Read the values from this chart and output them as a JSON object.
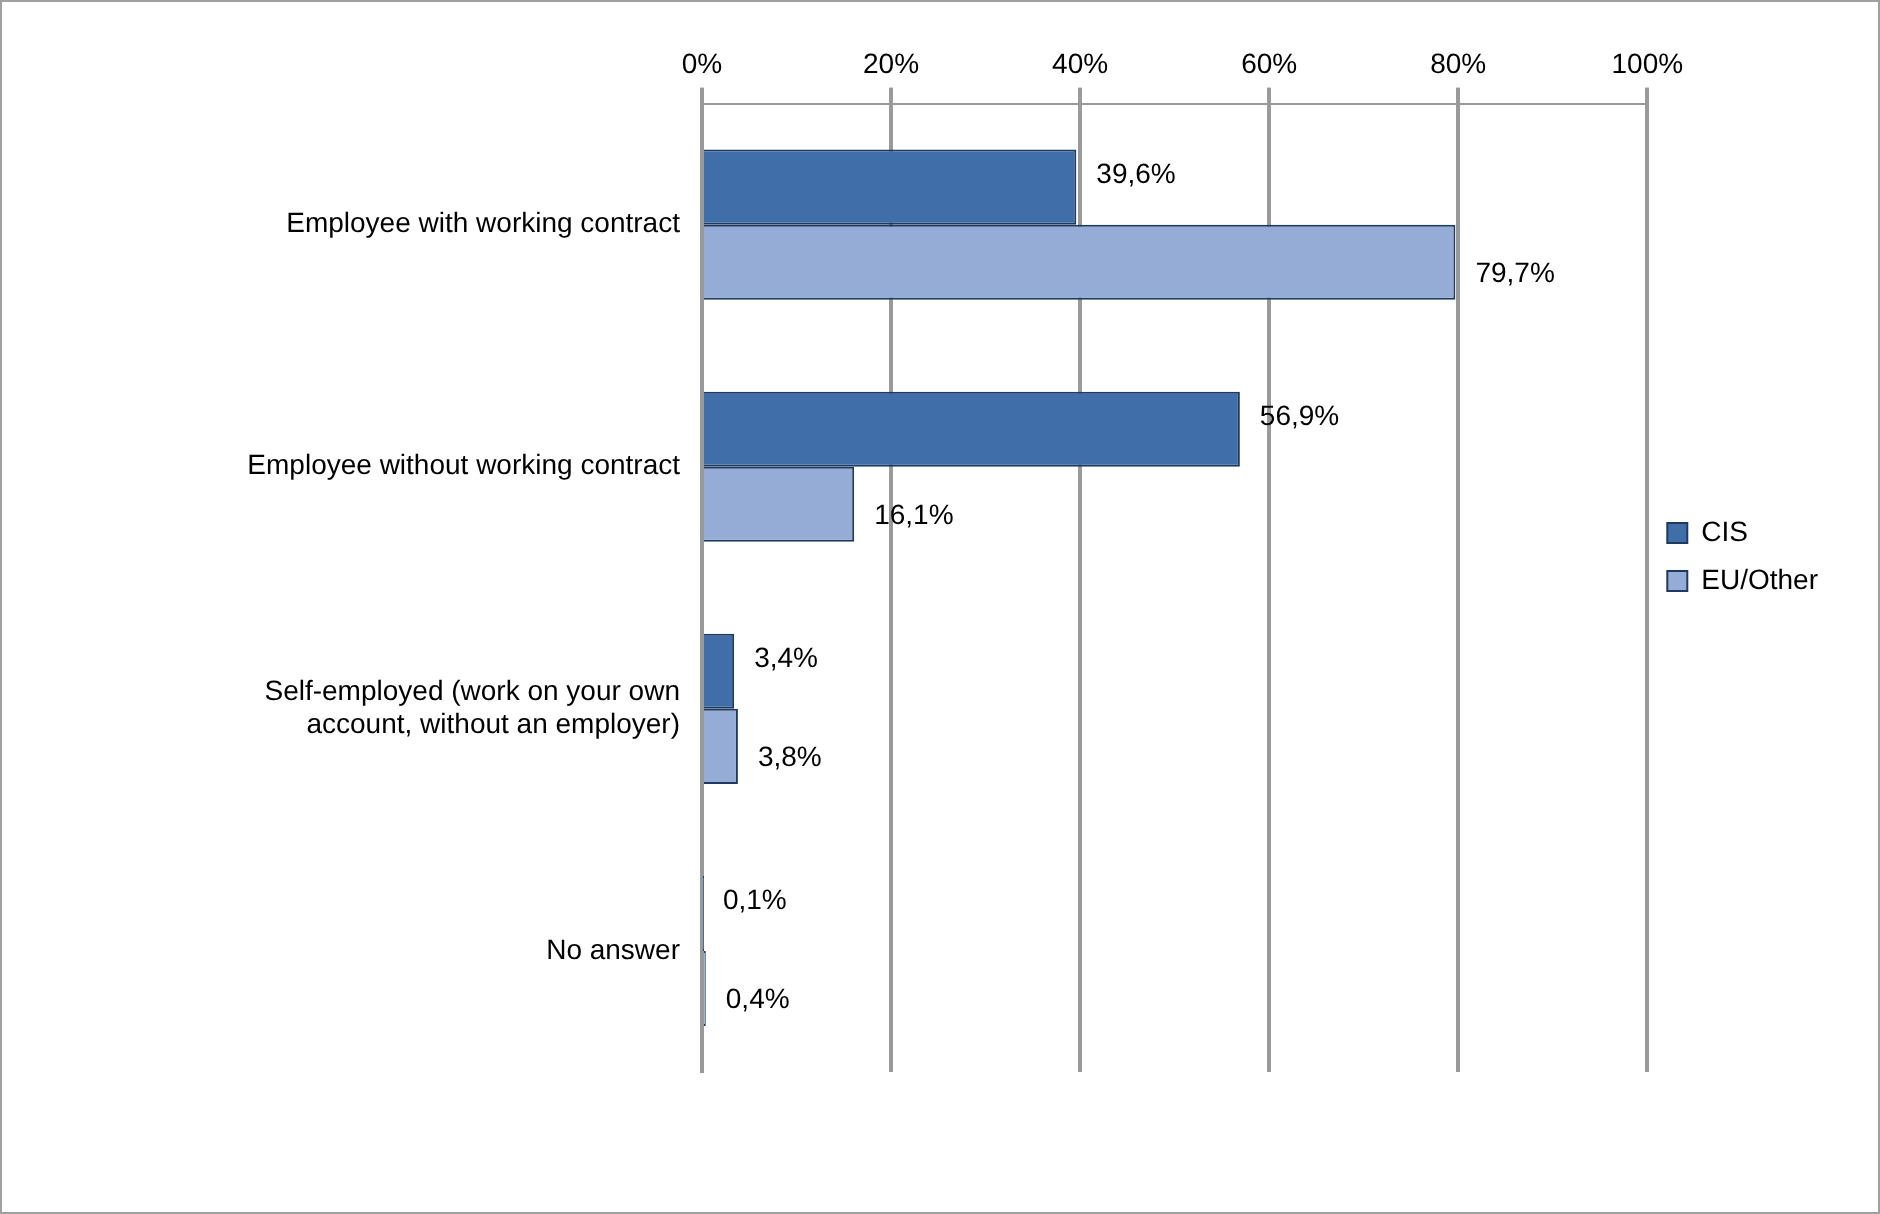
{
  "chart_data": {
    "type": "bar",
    "orientation": "horizontal",
    "categories": [
      "Employee with working contract",
      "Employee without working contract",
      "Self-employed (work on your own account, without an employer)",
      "No answer"
    ],
    "series": [
      {
        "name": "CIS",
        "color": "#3f6ea8",
        "values": [
          39.6,
          56.9,
          3.4,
          0.1
        ],
        "value_labels": [
          "39,6%",
          "56,9%",
          "3,4%",
          "0,1%"
        ]
      },
      {
        "name": "EU/Other",
        "color": "#95acd6",
        "values": [
          79.7,
          16.1,
          3.8,
          0.4
        ],
        "value_labels": [
          "79,7%",
          "16,1%",
          "3,8%",
          "0,4%"
        ]
      }
    ],
    "xlim": [
      0,
      100
    ],
    "xticks": [
      {
        "value": 0,
        "label": "0%"
      },
      {
        "value": 20,
        "label": "20%"
      },
      {
        "value": 40,
        "label": "40%"
      },
      {
        "value": 60,
        "label": "60%"
      },
      {
        "value": 80,
        "label": "80%"
      },
      {
        "value": 100,
        "label": "100%"
      }
    ],
    "grid": "x",
    "legend": "right"
  }
}
